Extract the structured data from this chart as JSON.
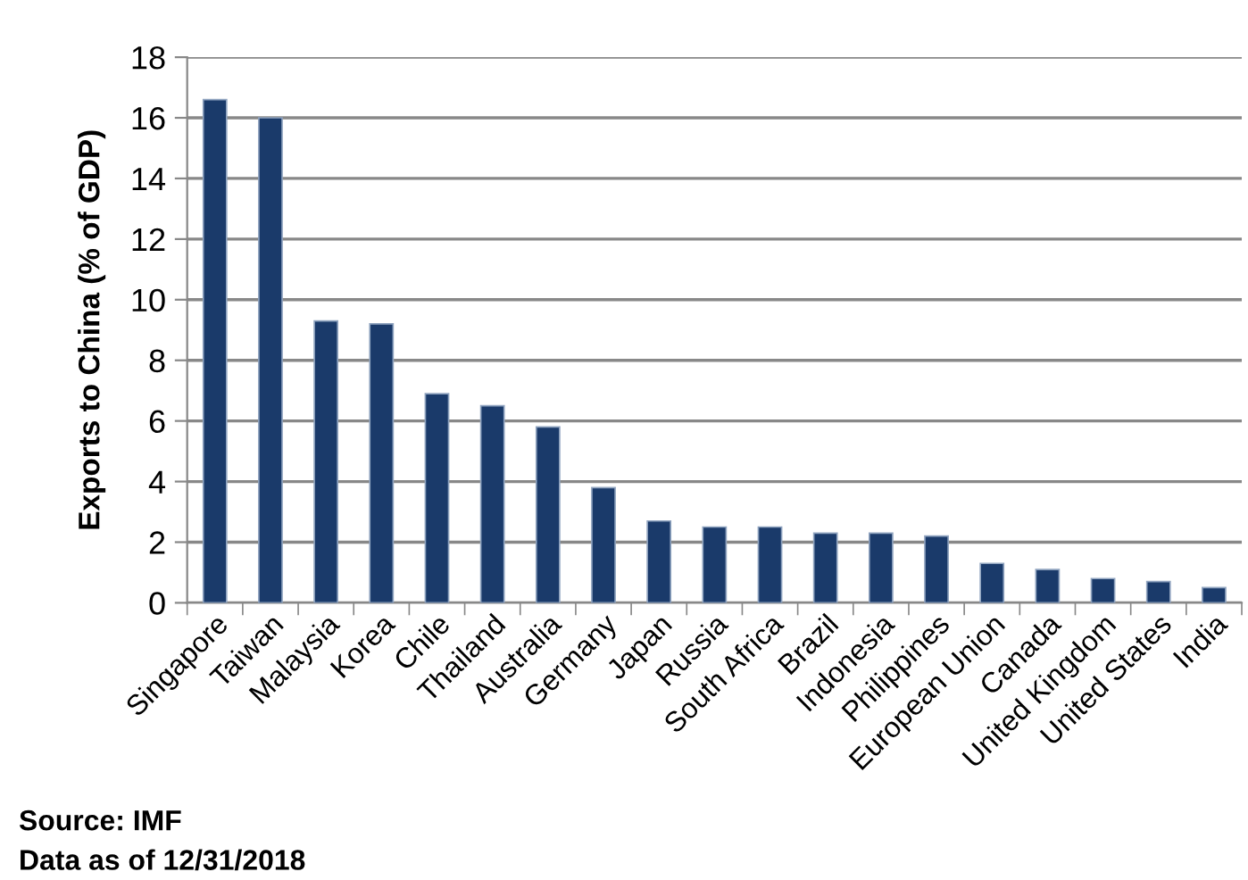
{
  "chart_data": {
    "type": "bar",
    "ylabel": "Exports to China (% of GDP)",
    "categories": [
      "Singapore",
      "Taiwan",
      "Malaysia",
      "Korea",
      "Chile",
      "Thailand",
      "Australia",
      "Germany",
      "Japan",
      "Russia",
      "South Africa",
      "Brazil",
      "Indonesia",
      "Philippines",
      "European Union",
      "Canada",
      "United Kingdom",
      "United States",
      "India"
    ],
    "values": [
      16.6,
      16.0,
      9.3,
      9.2,
      6.9,
      6.5,
      5.8,
      3.8,
      2.7,
      2.5,
      2.5,
      2.3,
      2.3,
      2.2,
      1.3,
      1.1,
      0.8,
      0.7,
      0.5
    ],
    "color": "#1a3a6a",
    "ylim": [
      0,
      18
    ],
    "yticks": [
      0,
      2,
      4,
      6,
      8,
      10,
      12,
      14,
      16,
      18
    ],
    "grid": "y",
    "legend": false,
    "annotations": [
      "Source: IMF",
      "Data as of 12/31/2018"
    ]
  }
}
